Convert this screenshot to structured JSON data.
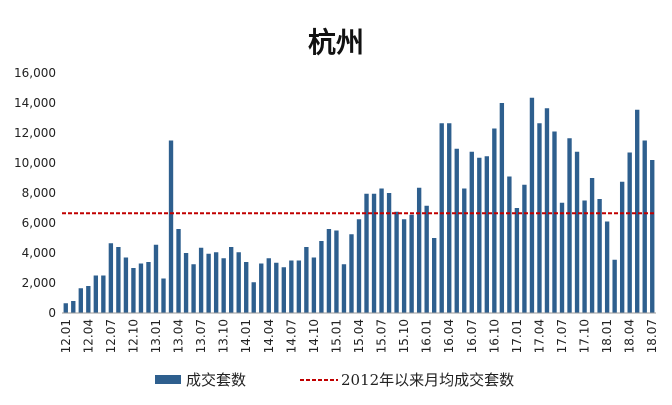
{
  "chart_data": {
    "type": "bar",
    "title": "杭州",
    "ylim": [
      0,
      16000
    ],
    "yticks": [
      "0",
      "2,000",
      "4,000",
      "6,000",
      "8,000",
      "10,000",
      "12,000",
      "14,000",
      "16,000"
    ],
    "grid": false,
    "legend_position": "bottom",
    "categories": [
      "12.01",
      "12.02",
      "12.03",
      "12.04",
      "12.05",
      "12.06",
      "12.07",
      "12.08",
      "12.09",
      "12.10",
      "12.11",
      "12.12",
      "13.01",
      "13.02",
      "13.03",
      "13.04",
      "13.05",
      "13.06",
      "13.07",
      "13.08",
      "13.09",
      "13.10",
      "13.11",
      "13.12",
      "14.01",
      "14.02",
      "14.03",
      "14.04",
      "14.05",
      "14.06",
      "14.07",
      "14.08",
      "14.09",
      "14.10",
      "14.11",
      "14.12",
      "15.01",
      "15.02",
      "15.03",
      "15.04",
      "15.05",
      "15.06",
      "15.07",
      "15.08",
      "15.09",
      "15.10",
      "15.11",
      "15.12",
      "16.01",
      "16.02",
      "16.03",
      "16.04",
      "16.05",
      "16.06",
      "16.07",
      "16.08",
      "16.09",
      "16.10",
      "16.11",
      "16.12",
      "17.01",
      "17.02",
      "17.03",
      "17.04",
      "17.05",
      "17.06",
      "17.07",
      "17.08",
      "17.09",
      "17.10",
      "17.11",
      "17.12",
      "18.01",
      "18.02",
      "18.03",
      "18.04",
      "18.05",
      "18.06",
      "18.07"
    ],
    "tick_labels": [
      "12.01",
      "12.04",
      "12.07",
      "12.10",
      "13.01",
      "13.04",
      "13.07",
      "13.10",
      "14.01",
      "14.04",
      "14.07",
      "14.10",
      "15.01",
      "15.04",
      "15.07",
      "15.10",
      "16.01",
      "16.04",
      "16.07",
      "16.10",
      "17.01",
      "17.04",
      "17.07",
      "17.10",
      "18.01",
      "18.04",
      "18.07"
    ],
    "series": [
      {
        "name": "成交套数",
        "color": "#2e5f8e",
        "values": [
          650,
          800,
          1650,
          1800,
          2500,
          2500,
          4650,
          4400,
          3700,
          3000,
          3300,
          3400,
          4550,
          2300,
          11500,
          5600,
          4000,
          3250,
          4350,
          3950,
          4050,
          3650,
          4400,
          4050,
          3400,
          2050,
          3300,
          3650,
          3350,
          3050,
          3500,
          3500,
          4400,
          3700,
          4800,
          5600,
          5500,
          3250,
          5250,
          6250,
          7950,
          7950,
          8300,
          8000,
          6750,
          6250,
          6550,
          8350,
          7150,
          5000,
          12650,
          12650,
          10950,
          8300,
          10750,
          10350,
          10450,
          12300,
          14000,
          9100,
          7000,
          8550,
          14350,
          12650,
          13650,
          12100,
          7350,
          11650,
          10750,
          7500,
          9000,
          7600,
          6100,
          3550,
          8750,
          10700,
          13550,
          11500,
          10200
        ]
      }
    ],
    "reference_line": {
      "name": "2012年以来月均成交套数",
      "value": 6650,
      "color": "#c00000"
    }
  }
}
